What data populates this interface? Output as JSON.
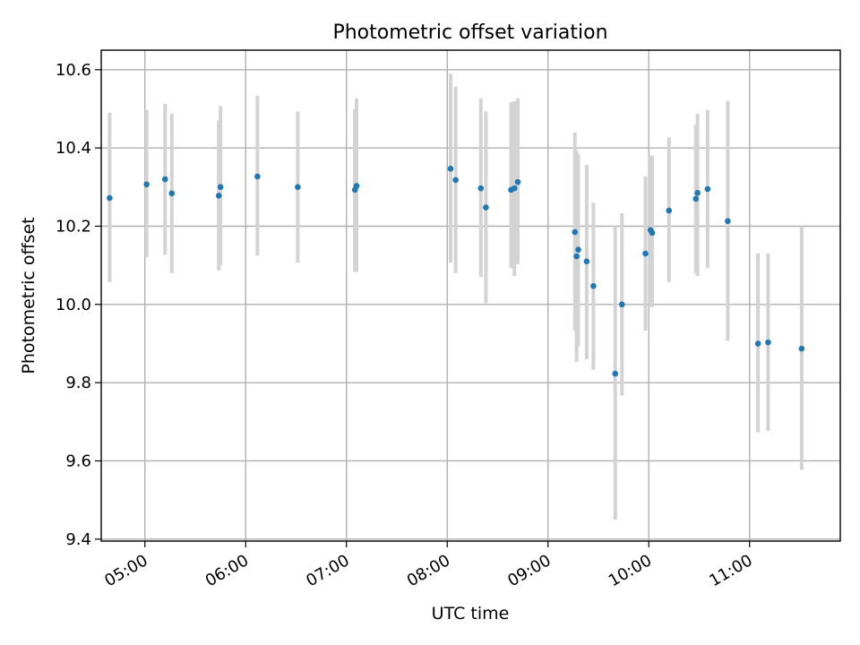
{
  "chart_data": {
    "type": "scatter",
    "title": "Photometric offset variation",
    "xlabel": "UTC time",
    "ylabel": "Photometric offset",
    "xlim": [
      "04:34",
      "11:54"
    ],
    "ylim": [
      9.395,
      10.65
    ],
    "xticks": [
      "05:00",
      "06:00",
      "07:00",
      "08:00",
      "09:00",
      "10:00",
      "11:00"
    ],
    "yticks": [
      9.4,
      9.6,
      9.8,
      10.0,
      10.2,
      10.4,
      10.6
    ],
    "ytick_labels": [
      "9.4",
      "9.6",
      "9.8",
      "10.0",
      "10.2",
      "10.4",
      "10.6"
    ],
    "grid": true,
    "colors": {
      "points": "#1f77b4",
      "errorbars": "#d3d3d3",
      "grid": "#b0b0b0"
    },
    "points": [
      {
        "x": "04:39",
        "y": 10.272,
        "ylow": 10.057,
        "yhigh": 10.49
      },
      {
        "x": "05:01",
        "y": 10.307,
        "ylow": 10.12,
        "yhigh": 10.497
      },
      {
        "x": "05:12",
        "y": 10.32,
        "ylow": 10.127,
        "yhigh": 10.513
      },
      {
        "x": "05:16",
        "y": 10.284,
        "ylow": 10.08,
        "yhigh": 10.488
      },
      {
        "x": "05:44",
        "y": 10.278,
        "ylow": 10.087,
        "yhigh": 10.47
      },
      {
        "x": "05:45",
        "y": 10.3,
        "ylow": 10.1,
        "yhigh": 10.507
      },
      {
        "x": "06:07",
        "y": 10.327,
        "ylow": 10.125,
        "yhigh": 10.533
      },
      {
        "x": "06:31",
        "y": 10.3,
        "ylow": 10.107,
        "yhigh": 10.493
      },
      {
        "x": "07:05",
        "y": 10.293,
        "ylow": 10.083,
        "yhigh": 10.5
      },
      {
        "x": "07:06",
        "y": 10.303,
        "ylow": 10.083,
        "yhigh": 10.527
      },
      {
        "x": "08:02",
        "y": 10.347,
        "ylow": 10.107,
        "yhigh": 10.59
      },
      {
        "x": "08:05",
        "y": 10.318,
        "ylow": 10.08,
        "yhigh": 10.557
      },
      {
        "x": "08:20",
        "y": 10.297,
        "ylow": 10.07,
        "yhigh": 10.527
      },
      {
        "x": "08:23",
        "y": 10.248,
        "ylow": 10.003,
        "yhigh": 10.493
      },
      {
        "x": "08:38",
        "y": 10.293,
        "ylow": 10.093,
        "yhigh": 10.517
      },
      {
        "x": "08:40",
        "y": 10.297,
        "ylow": 10.073,
        "yhigh": 10.52
      },
      {
        "x": "08:42",
        "y": 10.313,
        "ylow": 10.103,
        "yhigh": 10.527
      },
      {
        "x": "09:16",
        "y": 10.185,
        "ylow": 9.933,
        "yhigh": 10.44
      },
      {
        "x": "09:17",
        "y": 10.123,
        "ylow": 9.853,
        "yhigh": 10.393
      },
      {
        "x": "09:18",
        "y": 10.14,
        "ylow": 9.893,
        "yhigh": 10.383
      },
      {
        "x": "09:23",
        "y": 10.11,
        "ylow": 9.86,
        "yhigh": 10.357
      },
      {
        "x": "09:27",
        "y": 10.047,
        "ylow": 9.833,
        "yhigh": 10.26
      },
      {
        "x": "09:40",
        "y": 9.823,
        "ylow": 9.45,
        "yhigh": 10.2
      },
      {
        "x": "09:44",
        "y": 10.0,
        "ylow": 9.767,
        "yhigh": 10.233
      },
      {
        "x": "09:58",
        "y": 10.13,
        "ylow": 9.933,
        "yhigh": 10.327
      },
      {
        "x": "10:01",
        "y": 10.19,
        "ylow": 9.993,
        "yhigh": 10.38
      },
      {
        "x": "10:02",
        "y": 10.183,
        "ylow": 9.993,
        "yhigh": 10.38
      },
      {
        "x": "10:12",
        "y": 10.24,
        "ylow": 10.057,
        "yhigh": 10.427
      },
      {
        "x": "10:28",
        "y": 10.27,
        "ylow": 10.08,
        "yhigh": 10.46
      },
      {
        "x": "10:29",
        "y": 10.285,
        "ylow": 10.073,
        "yhigh": 10.487
      },
      {
        "x": "10:35",
        "y": 10.295,
        "ylow": 10.093,
        "yhigh": 10.497
      },
      {
        "x": "10:47",
        "y": 10.213,
        "ylow": 9.907,
        "yhigh": 10.52
      },
      {
        "x": "11:05",
        "y": 9.9,
        "ylow": 9.673,
        "yhigh": 10.13
      },
      {
        "x": "11:11",
        "y": 9.903,
        "ylow": 9.677,
        "yhigh": 10.13
      },
      {
        "x": "11:31",
        "y": 9.887,
        "ylow": 9.577,
        "yhigh": 10.2
      }
    ]
  }
}
